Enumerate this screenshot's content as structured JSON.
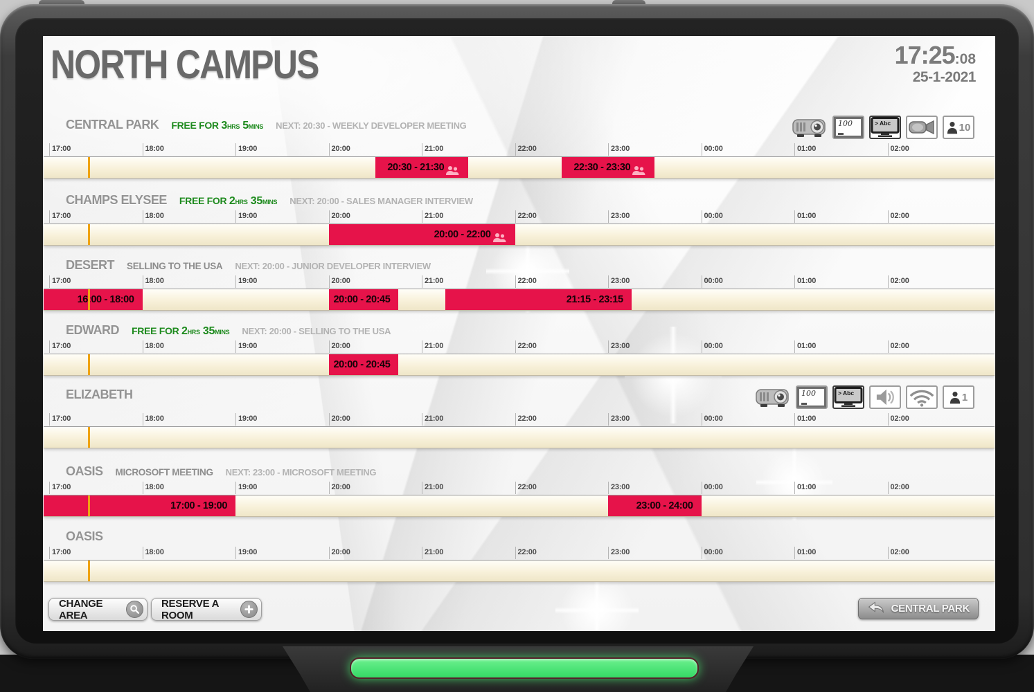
{
  "header": {
    "title": "NORTH CAMPUS",
    "clock": "17:25",
    "clock_seconds": ":08",
    "date": "25-1-2021"
  },
  "timeline": {
    "hour_labels": [
      "17:00",
      "18:00",
      "19:00",
      "20:00",
      "21:00",
      "22:00",
      "23:00",
      "00:00",
      "01:00",
      "02:00"
    ],
    "now": "17:25:08"
  },
  "rooms": [
    {
      "name": "CENTRAL PARK",
      "status": {
        "kind": "free",
        "prefix": "FREE FOR",
        "parts": [
          {
            "value": "3",
            "unit": "HRS"
          },
          {
            "value": "5",
            "unit": "MINS"
          }
        ]
      },
      "next": "NEXT: 20:30 - WEEKLY DEVELOPER MEETING",
      "equipment": [
        {
          "type": "projector"
        },
        {
          "type": "whiteboard",
          "label": "100"
        },
        {
          "type": "display",
          "label": "> Abc"
        },
        {
          "type": "camera"
        },
        {
          "type": "capacity",
          "label": "10"
        }
      ],
      "bookings": [
        {
          "label": "20:30 - 21:30",
          "start": "20:30",
          "end": "21:30",
          "people_icon": true
        },
        {
          "label": "22:30 - 23:30",
          "start": "22:30",
          "end": "23:30",
          "people_icon": true
        }
      ]
    },
    {
      "name": "CHAMPS ELYSEE",
      "status": {
        "kind": "free",
        "prefix": "FREE FOR",
        "parts": [
          {
            "value": "2",
            "unit": "HRS"
          },
          {
            "value": "35",
            "unit": "MINS"
          }
        ]
      },
      "next": "NEXT: 20:00 - SALES MANAGER INTERVIEW",
      "equipment": [],
      "bookings": [
        {
          "label": "20:00 - 22:00",
          "start": "20:00",
          "end": "22:00",
          "people_icon": true
        }
      ]
    },
    {
      "name": "DESERT",
      "status": {
        "kind": "meeting",
        "title": "SELLING TO THE USA"
      },
      "next": "NEXT: 20:00 - JUNIOR DEVELOPER INTERVIEW",
      "equipment": [],
      "bookings": [
        {
          "label": "16:00 - 18:00",
          "start": "16:00",
          "end": "18:00",
          "people_icon": false
        },
        {
          "label": "20:00 - 20:45",
          "start": "20:00",
          "end": "20:45",
          "people_icon": false
        },
        {
          "label": "21:15 - 23:15",
          "start": "21:15",
          "end": "23:15",
          "people_icon": false
        }
      ]
    },
    {
      "name": "EDWARD",
      "status": {
        "kind": "free",
        "prefix": "FREE FOR",
        "parts": [
          {
            "value": "2",
            "unit": "HRS"
          },
          {
            "value": "35",
            "unit": "MINS"
          }
        ]
      },
      "next": "NEXT: 20:00 - SELLING TO THE USA",
      "equipment": [],
      "bookings": [
        {
          "label": "20:00 - 20:45",
          "start": "20:00",
          "end": "20:45",
          "people_icon": false
        }
      ]
    },
    {
      "name": "ELIZABETH",
      "status": null,
      "next": null,
      "equipment": [
        {
          "type": "projector"
        },
        {
          "type": "whiteboard",
          "label": "100"
        },
        {
          "type": "display",
          "label": "> Abc"
        },
        {
          "type": "speaker"
        },
        {
          "type": "wifi"
        },
        {
          "type": "capacity",
          "label": "1"
        }
      ],
      "bookings": []
    },
    {
      "name": "OASIS",
      "status": {
        "kind": "meeting",
        "title": "MICROSOFT MEETING"
      },
      "next": "NEXT: 23:00 - MICROSOFT MEETING",
      "equipment": [],
      "bookings": [
        {
          "label": "17:00 - 19:00",
          "start": "17:00",
          "end": "19:00",
          "people_icon": false
        },
        {
          "label": "23:00 - 24:00",
          "start": "23:00",
          "end": "24:00",
          "people_icon": false
        }
      ]
    },
    {
      "name": "OASIS",
      "status": null,
      "next": null,
      "equipment": [],
      "bookings": []
    }
  ],
  "footer": {
    "change_area": "CHANGE AREA",
    "reserve_room": "RESERVE A ROOM",
    "back_button": "CENTRAL PARK"
  },
  "colors": {
    "booking_red": "#e6134a",
    "free_green": "#1d8a1d",
    "now_line": "#efa312",
    "led_green": "#45e470"
  }
}
